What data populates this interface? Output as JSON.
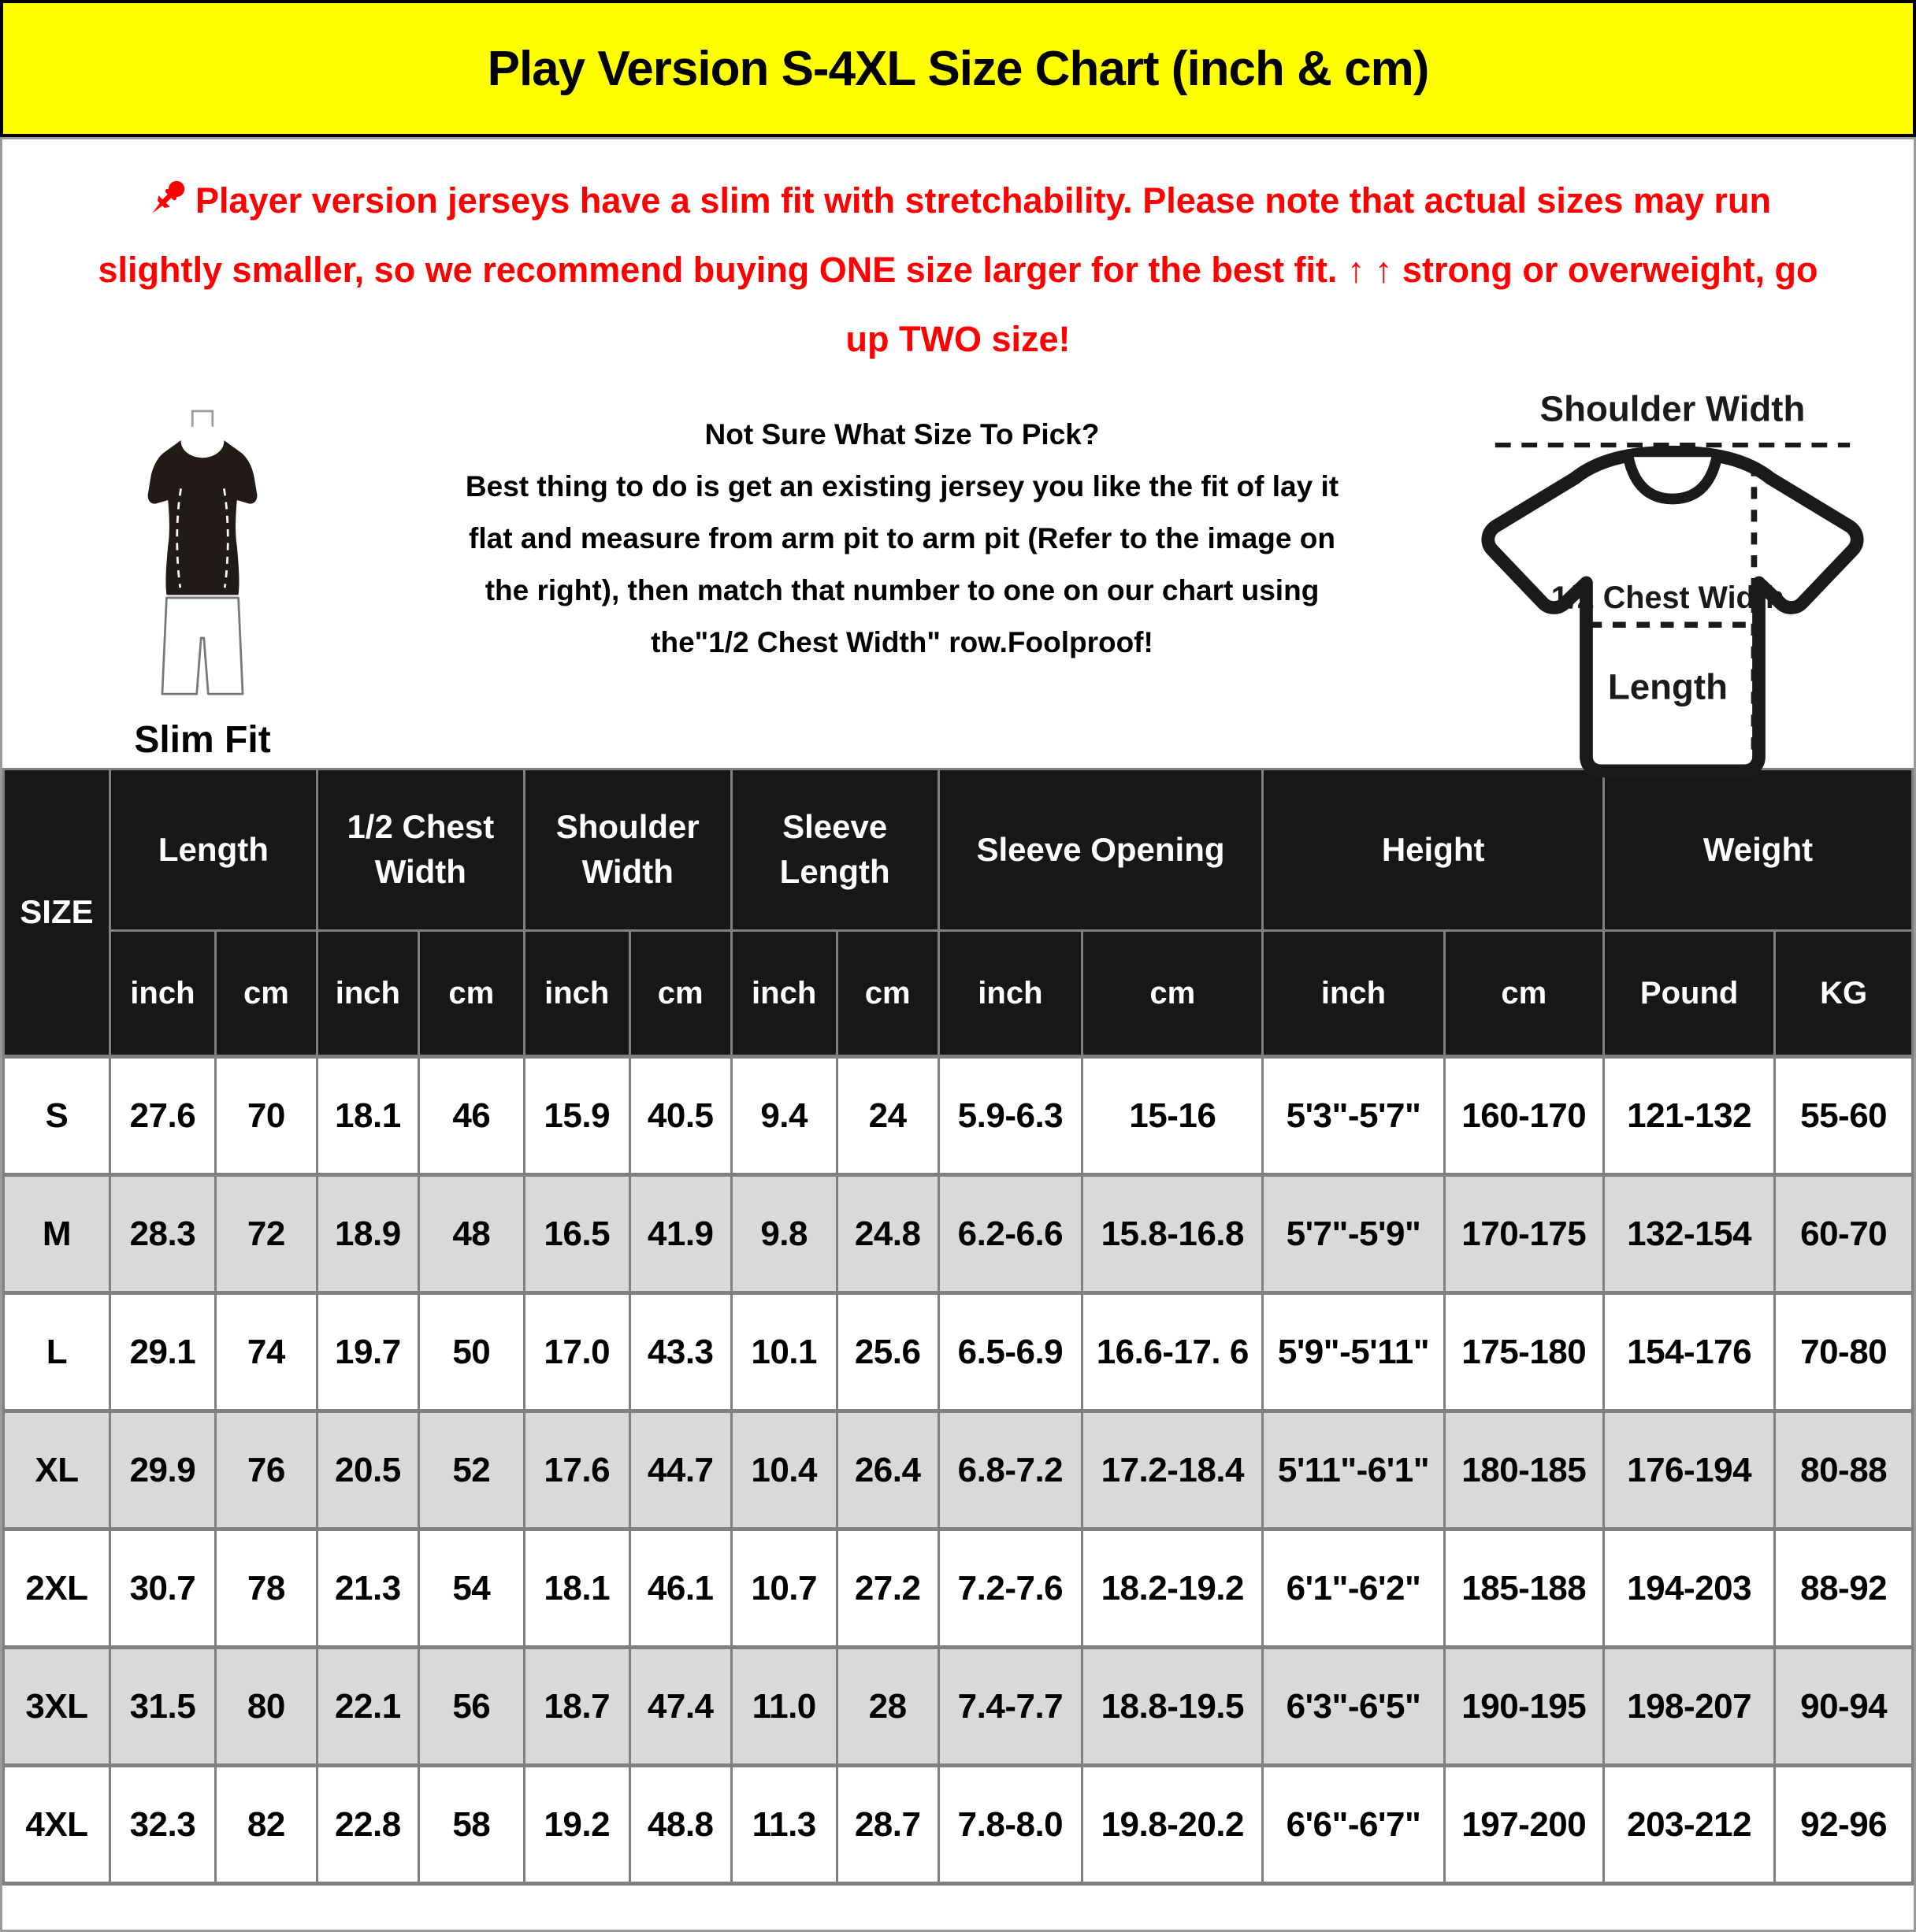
{
  "title": "Play Version S-4XL Size Chart (inch & cm)",
  "notice": {
    "pin_icon": "pushpin-icon",
    "lines": [
      "Player version jerseys have a slim fit with stretchability. Please note that actual sizes may run",
      "slightly smaller, so we recommend buying ONE size larger for the best fit. ↑ ↑ strong or overweight, go",
      "up TWO size!"
    ]
  },
  "fit_figure": {
    "label": "Slim Fit"
  },
  "size_help": {
    "heading": "Not Sure What Size To Pick?",
    "lines": [
      "Best thing to do is get an existing jersey you like the fit of lay it",
      "flat and measure from arm pit to arm pit (Refer to the image on",
      "the right), then match that number to one on our chart using",
      "the\"1/2 Chest Width\" row.Foolproof!"
    ]
  },
  "diagram": {
    "shoulder_label": "Shoulder Width",
    "chest_label": "1/2 Chest Width",
    "length_label": "Length"
  },
  "table": {
    "size_header": "SIZE",
    "groups": [
      {
        "label": "Length",
        "sub": [
          "inch",
          "cm"
        ]
      },
      {
        "label": "1/2 Chest Width",
        "sub": [
          "inch",
          "cm"
        ]
      },
      {
        "label": "Shoulder Width",
        "sub": [
          "inch",
          "cm"
        ]
      },
      {
        "label": "Sleeve Length",
        "sub": [
          "inch",
          "cm"
        ]
      },
      {
        "label": "Sleeve Opening",
        "sub": [
          "inch",
          "cm"
        ]
      },
      {
        "label": "Height",
        "sub": [
          "inch",
          "cm"
        ]
      },
      {
        "label": "Weight",
        "sub": [
          "Pound",
          "KG"
        ]
      }
    ],
    "rows": [
      {
        "size": "S",
        "values": [
          "27.6",
          "70",
          "18.1",
          "46",
          "15.9",
          "40.5",
          "9.4",
          "24",
          "5.9-6.3",
          "15-16",
          "5'3\"-5'7\"",
          "160-170",
          "121-132",
          "55-60"
        ]
      },
      {
        "size": "M",
        "values": [
          "28.3",
          "72",
          "18.9",
          "48",
          "16.5",
          "41.9",
          "9.8",
          "24.8",
          "6.2-6.6",
          "15.8-16.8",
          "5'7\"-5'9\"",
          "170-175",
          "132-154",
          "60-70"
        ]
      },
      {
        "size": "L",
        "values": [
          "29.1",
          "74",
          "19.7",
          "50",
          "17.0",
          "43.3",
          "10.1",
          "25.6",
          "6.5-6.9",
          "16.6-17. 6",
          "5'9\"-5'11\"",
          "175-180",
          "154-176",
          "70-80"
        ]
      },
      {
        "size": "XL",
        "values": [
          "29.9",
          "76",
          "20.5",
          "52",
          "17.6",
          "44.7",
          "10.4",
          "26.4",
          "6.8-7.2",
          "17.2-18.4",
          "5'11\"-6'1\"",
          "180-185",
          "176-194",
          "80-88"
        ]
      },
      {
        "size": "2XL",
        "values": [
          "30.7",
          "78",
          "21.3",
          "54",
          "18.1",
          "46.1",
          "10.7",
          "27.2",
          "7.2-7.6",
          "18.2-19.2",
          "6'1\"-6'2\"",
          "185-188",
          "194-203",
          "88-92"
        ]
      },
      {
        "size": "3XL",
        "values": [
          "31.5",
          "80",
          "22.1",
          "56",
          "18.7",
          "47.4",
          "11.0",
          "28",
          "7.4-7.7",
          "18.8-19.5",
          "6'3\"-6'5\"",
          "190-195",
          "198-207",
          "90-94"
        ]
      },
      {
        "size": "4XL",
        "values": [
          "32.3",
          "82",
          "22.8",
          "58",
          "19.2",
          "48.8",
          "11.3",
          "28.7",
          "7.8-8.0",
          "19.8-20.2",
          "6'6\"-6'7\"",
          "197-200",
          "203-212",
          "92-96"
        ]
      }
    ]
  },
  "colors": {
    "banner": "#FFFF00",
    "notice_red": "#FE0000",
    "header_bg": "#171717",
    "alt_row": "#D9D9D9",
    "grid": "#808080"
  }
}
